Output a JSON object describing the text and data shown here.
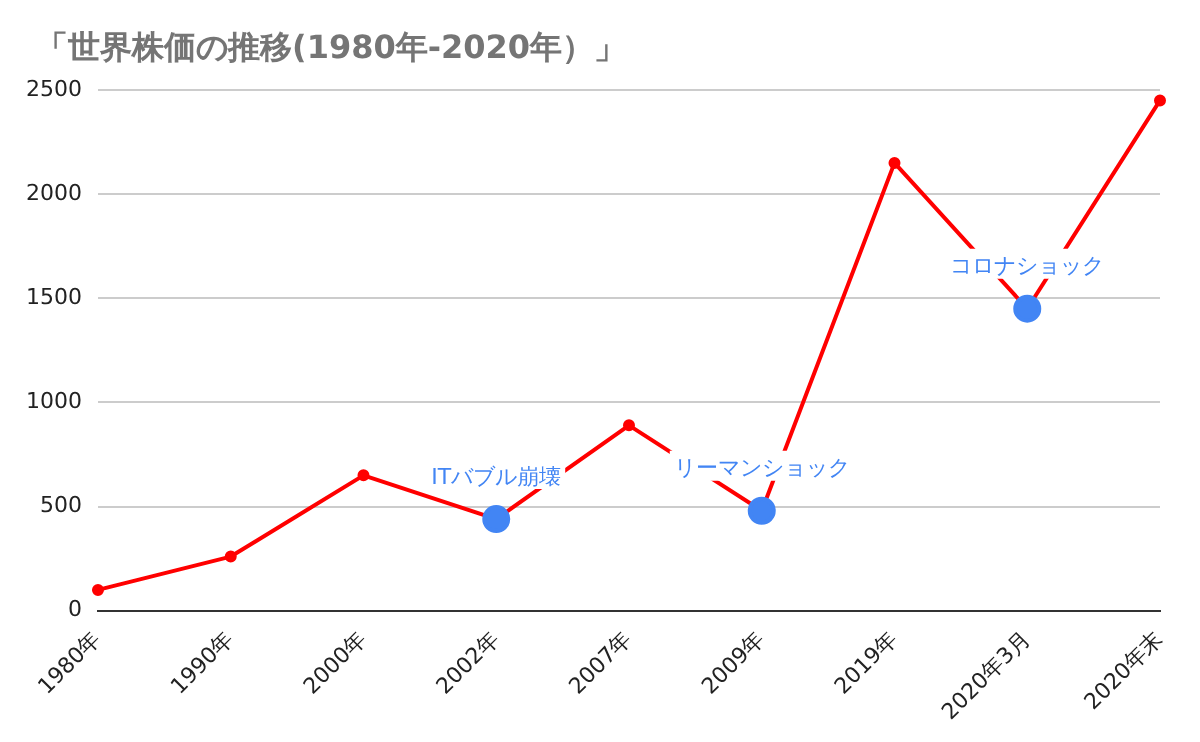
{
  "chart_data": {
    "type": "line",
    "title": "「世界株価の推移(1980年-2020年）」",
    "categories": [
      "1980年",
      "1990年",
      "2000年",
      "2002年",
      "2007年",
      "2009年",
      "2019年",
      "2020年3月",
      "2020年末"
    ],
    "series": [
      {
        "color": "#ff0000",
        "values": [
          100,
          260,
          650,
          440,
          890,
          480,
          2150,
          1450,
          2450
        ]
      }
    ],
    "ylim": [
      0,
      2500
    ],
    "yticks": [
      0,
      500,
      1000,
      1500,
      2000,
      2500
    ],
    "grid": "y",
    "legend": false,
    "marker": "circle",
    "line_style": "solid",
    "annotations": [
      {
        "text": "ITバブル崩壊",
        "x": "2002年",
        "y": 440
      },
      {
        "text": "リーマンショック",
        "x": "2009年",
        "y": 480
      },
      {
        "text": "コロナショック",
        "x": "2020年3月",
        "y": 1450
      }
    ]
  }
}
